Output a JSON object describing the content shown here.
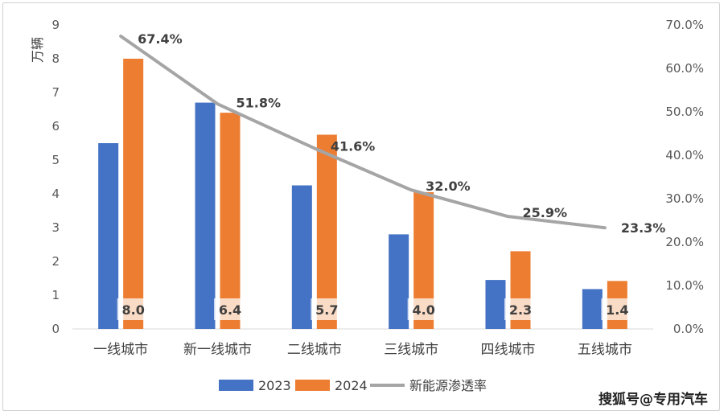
{
  "chart_data": {
    "type": "bar",
    "categories": [
      "一线城市",
      "新一线城市",
      "二线城市",
      "三线城市",
      "四线城市",
      "五线城市"
    ],
    "series": [
      {
        "name": "2023",
        "kind": "bar",
        "axis": "left",
        "color": "#4472C4",
        "values": [
          5.5,
          6.7,
          4.25,
          2.8,
          1.45,
          1.18
        ]
      },
      {
        "name": "2024",
        "kind": "bar",
        "axis": "left",
        "color": "#ED7D31",
        "values": [
          8.0,
          6.4,
          5.75,
          4.05,
          2.3,
          1.42
        ],
        "data_labels": [
          "8.0",
          "6.4",
          "5.7",
          "4.0",
          "2.3",
          "1.4"
        ]
      },
      {
        "name": "新能源渗透率",
        "kind": "line",
        "axis": "right",
        "color": "#A5A5A5",
        "values": [
          67.4,
          51.8,
          41.6,
          32.0,
          25.9,
          23.3
        ],
        "data_labels": [
          "67.4%",
          "51.8%",
          "41.6%",
          "32.0%",
          "25.9%",
          "23.3%"
        ]
      }
    ],
    "y_left": {
      "label": "万辆",
      "range": [
        0,
        9
      ],
      "ticks": [
        "0",
        "1",
        "2",
        "3",
        "4",
        "5",
        "6",
        "7",
        "8",
        "9"
      ]
    },
    "y_right": {
      "range": [
        0,
        70
      ],
      "ticks": [
        "0.0%",
        "10.0%",
        "20.0%",
        "30.0%",
        "40.0%",
        "50.0%",
        "60.0%",
        "70.0%"
      ]
    },
    "grid": false,
    "legend": "bottom"
  },
  "watermark": "搜狐号@专用汽车"
}
